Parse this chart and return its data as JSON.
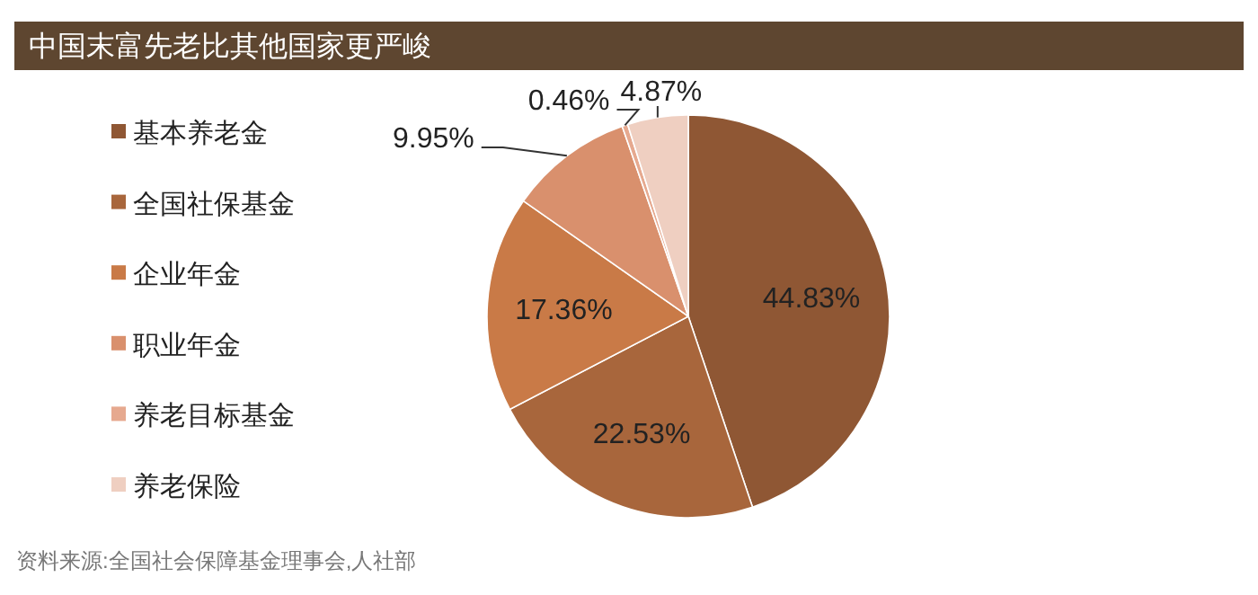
{
  "chart_data": {
    "type": "pie",
    "title": "中国末富先老比其他国家更严峻",
    "categories": [
      "基本养老金",
      "全国社保基金",
      "企业年金",
      "职业年金",
      "养老目标基金",
      "养老保险"
    ],
    "values": [
      44.83,
      22.53,
      17.36,
      9.95,
      0.46,
      4.87
    ],
    "value_labels": [
      "44.83%",
      "22.53%",
      "17.36%",
      "9.95%",
      "0.46%",
      "4.87%"
    ],
    "colors": [
      "#8f5734",
      "#a8663c",
      "#c97a47",
      "#d9906d",
      "#e6a98f",
      "#efcfc1"
    ],
    "legend": "left",
    "annotations": [
      "资料来源:全国社会保障基金理事会,人社部"
    ]
  }
}
